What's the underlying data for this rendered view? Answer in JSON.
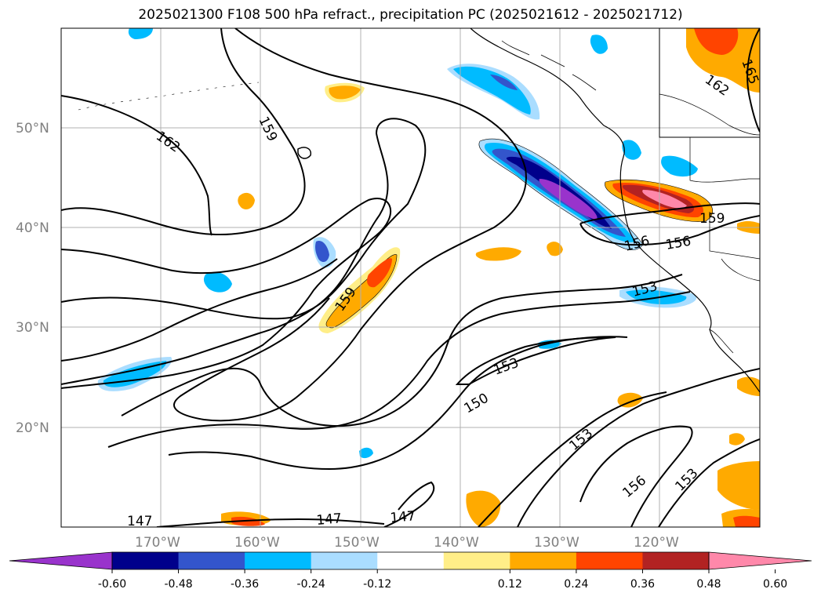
{
  "title": "2025021300 F108 500 hPa refract., precipitation PC (2025021612 - 2025021712)",
  "map": {
    "lat_labels": [
      "50°N",
      "40°N",
      "30°N",
      "20°N"
    ],
    "lon_labels": [
      "170°W",
      "160°W",
      "150°W",
      "140°W",
      "130°W",
      "120°W"
    ],
    "contour_labels": [
      "162",
      "159",
      "162",
      "165",
      "159",
      "159",
      "156",
      "156",
      "153",
      "153",
      "150",
      "153",
      "156",
      "153",
      "147",
      "147",
      "147"
    ]
  },
  "colorbar": {
    "ticks": [
      "-0.60",
      "-0.48",
      "-0.36",
      "-0.24",
      "-0.12",
      "0.12",
      "0.24",
      "0.36",
      "0.48",
      "0.60"
    ],
    "colors": [
      "#9933cc",
      "#00008b",
      "#3355cc",
      "#00bbff",
      "#aaddff",
      "#ffffff",
      "#ffee88",
      "#ffaa00",
      "#ff4400",
      "#b22222",
      "#ff88aa"
    ]
  }
}
